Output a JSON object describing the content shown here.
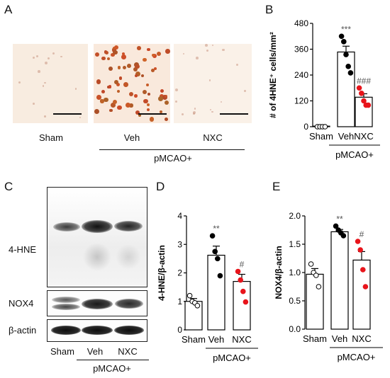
{
  "panels": {
    "A": {
      "label": "A",
      "groups": [
        "Sham",
        "Veh",
        "NXC"
      ],
      "bracket_label": "pMCAO+"
    },
    "B": {
      "label": "B"
    },
    "C": {
      "label": "C",
      "blot_labels": [
        "4-HNE",
        "NOX4",
        "β-actin"
      ],
      "lane_labels": [
        "Sham",
        "Veh",
        "NXC"
      ],
      "bracket_label": "pMCAO+"
    },
    "D": {
      "label": "D"
    },
    "E": {
      "label": "E"
    }
  },
  "chart_data": [
    {
      "panel": "B",
      "type": "bar",
      "categories": [
        "Sham",
        "Veh",
        "NXC"
      ],
      "values": [
        0,
        347,
        137
      ],
      "errors": [
        0,
        27,
        16
      ],
      "points": [
        [
          0,
          0,
          0,
          0
        ],
        [
          420,
          395,
          335,
          280,
          250
        ],
        [
          180,
          155,
          120,
          100,
          100
        ]
      ],
      "point_colors": [
        "#ffffff",
        "#000000",
        "#e8141b"
      ],
      "annotations": [
        "",
        "***",
        "###"
      ],
      "ylabel": "# of 4HNE⁺ cells/mm²",
      "yticks": [
        "0",
        "120",
        "240",
        "360",
        "480"
      ],
      "ylim": [
        0,
        480
      ],
      "group_label": "pMCAO+"
    },
    {
      "panel": "D",
      "type": "bar",
      "categories": [
        "Sham",
        "Veh",
        "NXC"
      ],
      "values": [
        1.0,
        2.62,
        1.7
      ],
      "errors": [
        0.1,
        0.32,
        0.25
      ],
      "points": [
        [
          1.2,
          1.0,
          0.95,
          0.85
        ],
        [
          3.3,
          2.75,
          2.5,
          1.9
        ],
        [
          2.05,
          1.75,
          1.35,
          0.98
        ]
      ],
      "point_colors": [
        "#ffffff",
        "#000000",
        "#e8141b"
      ],
      "annotations": [
        "",
        "**",
        "#"
      ],
      "ylabel": "4-HNE/β-actin",
      "yticks": [
        "0",
        "1",
        "2",
        "3",
        "4"
      ],
      "ylim": [
        0,
        4
      ],
      "group_label": "pMCAO+"
    },
    {
      "panel": "E",
      "type": "bar",
      "categories": [
        "Sham",
        "Veh",
        "NXC"
      ],
      "values": [
        0.97,
        1.72,
        1.22
      ],
      "errors": [
        0.1,
        0.04,
        0.15
      ],
      "points": [
        [
          1.15,
          1.0,
          0.95,
          0.75
        ],
        [
          1.82,
          1.75,
          1.7,
          1.65
        ],
        [
          1.55,
          1.4,
          1.05,
          0.75
        ]
      ],
      "point_colors": [
        "#ffffff",
        "#000000",
        "#e8141b"
      ],
      "annotations": [
        "",
        "**",
        "#"
      ],
      "ylabel": "NOX4/β-actin",
      "yticks": [
        "0.0",
        "0.5",
        "1.0",
        "1.5",
        "2.0"
      ],
      "ylim": [
        0,
        2
      ],
      "group_label": "pMCAO+"
    }
  ]
}
